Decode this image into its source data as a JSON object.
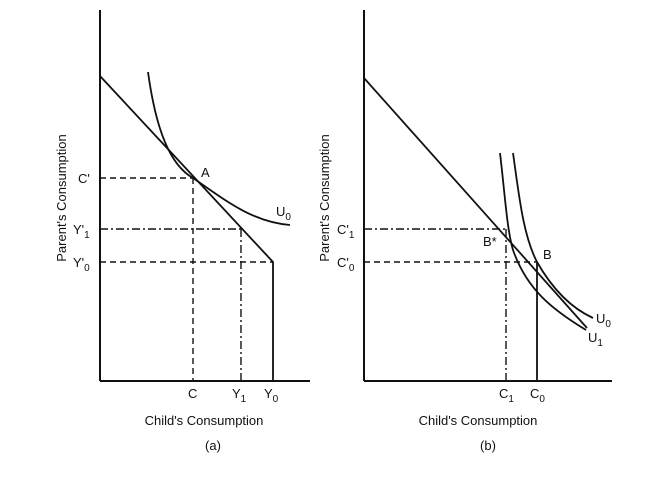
{
  "panel_a": {
    "ylabel": "Parent's Consumption",
    "xlabel": "Child's Consumption",
    "caption": "(a)",
    "curve_label": "U",
    "curve_sub": "0",
    "point_label": "A",
    "y_ticks": [
      {
        "main": "C'",
        "sub": ""
      },
      {
        "main": "Y'",
        "sub": "1"
      },
      {
        "main": "Y'",
        "sub": "0"
      }
    ],
    "x_ticks": [
      {
        "main": "C",
        "sub": ""
      },
      {
        "main": "Y",
        "sub": "1"
      },
      {
        "main": "Y",
        "sub": "0"
      }
    ]
  },
  "panel_b": {
    "ylabel": "Parent's Consumption",
    "xlabel": "Child's Consumption",
    "caption": "(b)",
    "curves": [
      {
        "main": "U",
        "sub": "0"
      },
      {
        "main": "U",
        "sub": "1"
      }
    ],
    "points": [
      "B*",
      "B"
    ],
    "y_ticks": [
      {
        "main": "C'",
        "sub": "1"
      },
      {
        "main": "C'",
        "sub": "0"
      }
    ],
    "x_ticks": [
      {
        "main": "C",
        "sub": "1"
      },
      {
        "main": "C",
        "sub": "0"
      }
    ]
  }
}
